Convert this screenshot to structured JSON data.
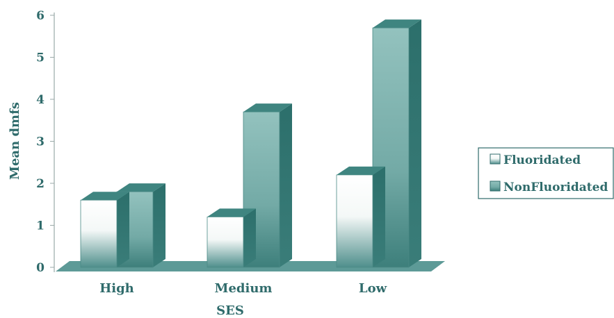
{
  "chart_data": {
    "type": "bar",
    "categories": [
      "High",
      "Medium",
      "Low"
    ],
    "series": [
      {
        "name": "Fluoridated",
        "values": [
          1.6,
          1.2,
          2.2
        ]
      },
      {
        "name": "NonFluoridated",
        "values": [
          1.8,
          3.7,
          5.7
        ]
      }
    ],
    "xlabel": "SES",
    "ylabel": "Mean dmfs",
    "ylim": [
      0,
      6
    ],
    "yticks": [
      0,
      1,
      2,
      3,
      4,
      5,
      6
    ],
    "grid": false,
    "legend_position": "right",
    "style": "3d"
  },
  "colors": {
    "text": "#2f6b6b",
    "floor": "#5d9a97",
    "fluoridated_top": "#ffffff",
    "fluoridated_bottom": "#4f8f8c",
    "nonfluoridated_top": "#8fc0bc",
    "nonfluoridated_bottom": "#3d7f7b",
    "side": "#2f7470",
    "cap": "#3f8580"
  }
}
